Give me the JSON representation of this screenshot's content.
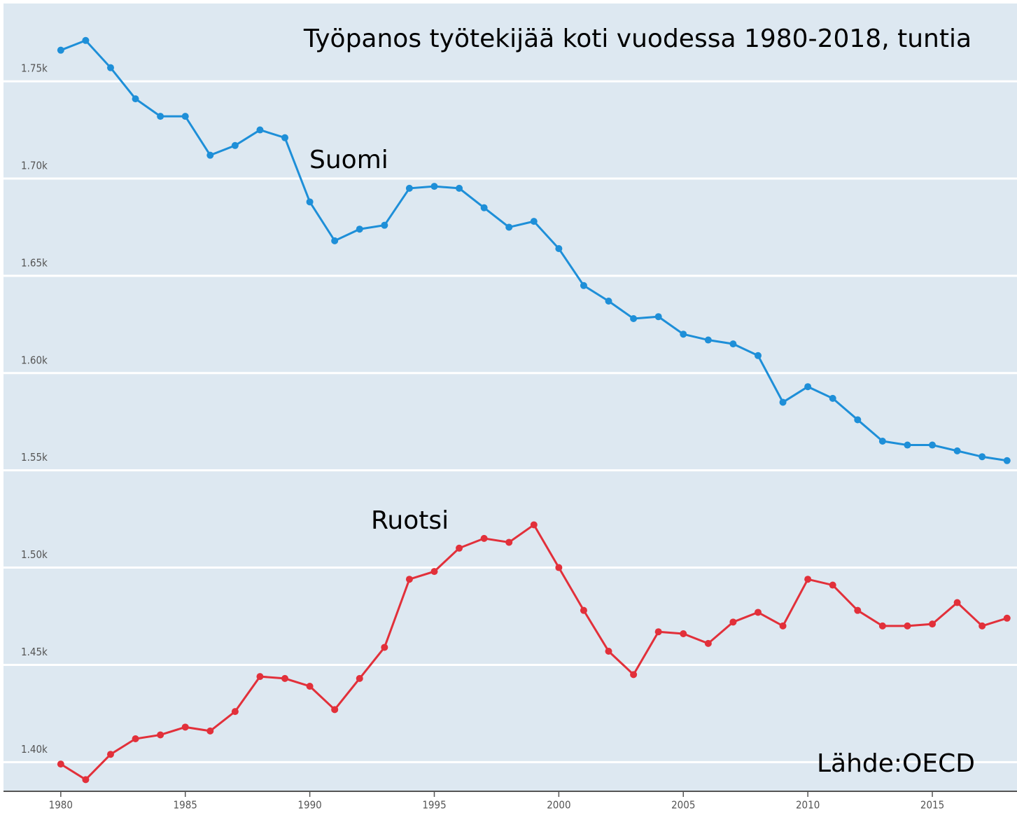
{
  "chart_data": {
    "type": "line",
    "title": "Työpanos työtekijää koti vuodessa 1980-2018, tuntia",
    "source": "Lähde:OECD",
    "x": [
      1980,
      1981,
      1982,
      1983,
      1984,
      1985,
      1986,
      1987,
      1988,
      1989,
      1990,
      1991,
      1992,
      1993,
      1994,
      1995,
      1996,
      1997,
      1998,
      1999,
      2000,
      2001,
      2002,
      2003,
      2004,
      2005,
      2006,
      2007,
      2008,
      2009,
      2010,
      2011,
      2012,
      2013,
      2014,
      2015,
      2016,
      2017,
      2018
    ],
    "series": [
      {
        "name": "Suomi",
        "color": "#1e8fd8",
        "values": [
          1766,
          1771,
          1757,
          1741,
          1732,
          1732,
          1712,
          1717,
          1725,
          1721,
          1688,
          1668,
          1674,
          1676,
          1695,
          1696,
          1695,
          1685,
          1675,
          1678,
          1664,
          1645,
          1637,
          1628,
          1629,
          1620,
          1617,
          1615,
          1609,
          1585,
          1593,
          1587,
          1576,
          1565,
          1563,
          1563,
          1560,
          1557,
          1555
        ]
      },
      {
        "name": "Ruotsi",
        "color": "#e2303a",
        "values": [
          1399,
          1391,
          1404,
          1412,
          1414,
          1418,
          1416,
          1426,
          1444,
          1443,
          1439,
          1427,
          1443,
          1459,
          1494,
          1498,
          1510,
          1515,
          1513,
          1522,
          1500,
          1478,
          1457,
          1445,
          1467,
          1466,
          1461,
          1472,
          1477,
          1470,
          1494,
          1491,
          1478,
          1470,
          1470,
          1471,
          1482,
          1470,
          1474
        ]
      }
    ],
    "xlim": [
      1977.7,
      2018.4
    ],
    "xticks": [
      1980,
      1985,
      1990,
      1995,
      2000,
      2005,
      2010,
      2015
    ],
    "ylim": [
      1385,
      1790
    ],
    "yticks": [
      {
        "value": 1400,
        "label": "1.40k"
      },
      {
        "value": 1450,
        "label": "1.45k"
      },
      {
        "value": 1500,
        "label": "1.50k"
      },
      {
        "value": 1550,
        "label": "1.55k"
      },
      {
        "value": 1600,
        "label": "1.60k"
      },
      {
        "value": 1650,
        "label": "1.65k"
      },
      {
        "value": 1700,
        "label": "1.70k"
      },
      {
        "value": 1750,
        "label": "1.75k"
      }
    ],
    "grid": true
  }
}
